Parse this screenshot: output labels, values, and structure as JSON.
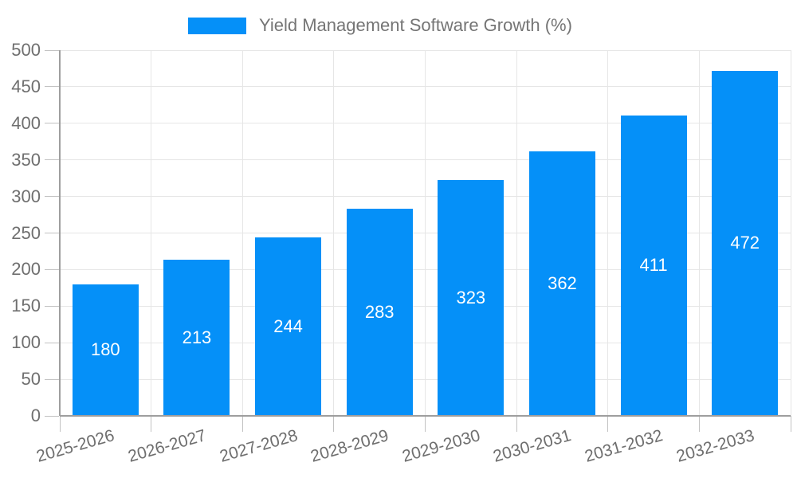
{
  "colors": {
    "bar": "#0590f8",
    "axis": "#9e9e9e",
    "grid": "#e6e6e6",
    "tick": "#c2c2c2",
    "tick_label_text": "#6f6f6f",
    "legend_text": "#757575",
    "bar_value_text": "#ffffff",
    "background": "#ffffff"
  },
  "legend": {
    "label": "Yield Management Software Growth (%)"
  },
  "chart_data": {
    "type": "bar",
    "title": "Yield Management Software Growth (%)",
    "categories": [
      "2025-2026",
      "2026-2027",
      "2027-2028",
      "2028-2029",
      "2029-2030",
      "2030-2031",
      "2031-2032",
      "2032-2033"
    ],
    "values": [
      180,
      213,
      244,
      283,
      323,
      362,
      411,
      472
    ],
    "xlabel": "",
    "ylabel": "",
    "ylim": [
      0,
      500
    ],
    "yticks": [
      0,
      50,
      100,
      150,
      200,
      250,
      300,
      350,
      400,
      450,
      500
    ],
    "grid": true,
    "legend_position": "top-center",
    "value_label_position": "inside-center",
    "x_tick_label_rotation_deg": -16
  }
}
